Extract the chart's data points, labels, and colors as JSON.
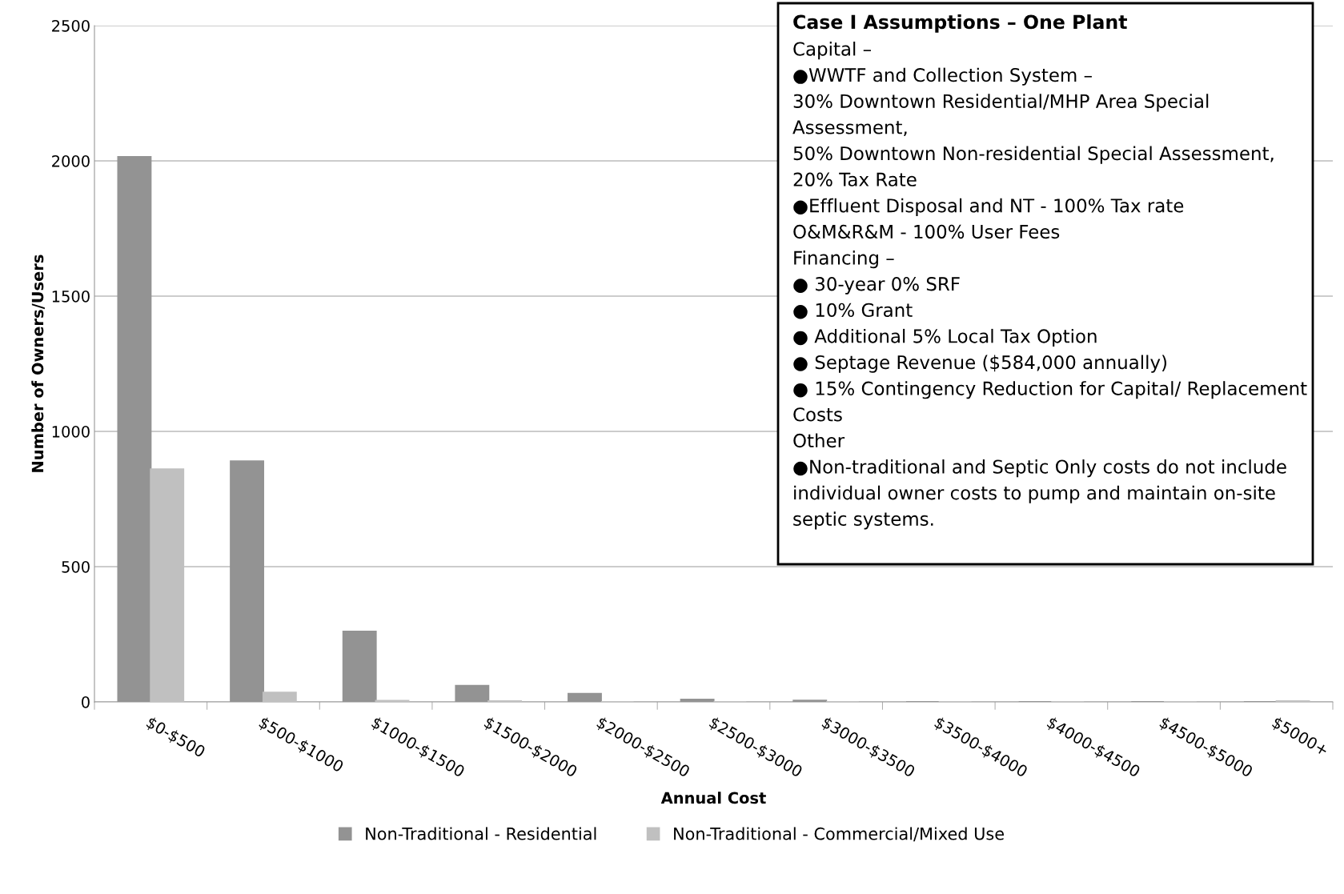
{
  "chart_data": {
    "type": "bar",
    "xlabel": "Annual Cost",
    "ylabel": "Number of Owners/Users",
    "categories": [
      "$0-$500",
      "$500-$1000",
      "$1000-$1500",
      "$1500-$2000",
      "$2000-$2500",
      "$2500-$3000",
      "$3000-$3500",
      "$3500-$4000",
      "$4000-$4500",
      "$4500-$5000",
      "$5000+"
    ],
    "series": [
      {
        "name": "Non-Traditional - Residential",
        "color": "#939393",
        "values": [
          2015,
          890,
          260,
          60,
          30,
          9,
          5,
          0,
          0,
          0,
          0
        ]
      },
      {
        "name": "Non-Traditional - Commercial/Mixed Use",
        "color": "#c0c0c0",
        "values": [
          860,
          35,
          4,
          3,
          0,
          0,
          0,
          0,
          0,
          0,
          3
        ]
      }
    ],
    "ylim": [
      0,
      2500
    ],
    "yticks": [
      0,
      500,
      1000,
      1500,
      2000,
      2500
    ],
    "grid": "y",
    "legend": "bottom",
    "annotations": [
      "Case I Assumptions – One Plant",
      "Capital –\n●WWTF and Collection System –\n30% Downtown Residential/MHP Area Special\nAssessment,\n50% Downtown Non-residential Special Assessment,\n20% Tax Rate\n●Effluent Disposal and NT - 100% Tax rate\nO&M&R&M - 100% User Fees\nFinancing –\n● 30-year 0% SRF\n● 10% Grant\n● Additional 5% Local Tax Option\n● Septage Revenue ($584,000 annually)\n● 15% Contingency Reduction for Capital/ Replacement\nCosts\nOther\n●Non-traditional and Septic Only costs do not include\nindividual owner costs to pump and maintain on-site\nseptic systems."
    ]
  }
}
